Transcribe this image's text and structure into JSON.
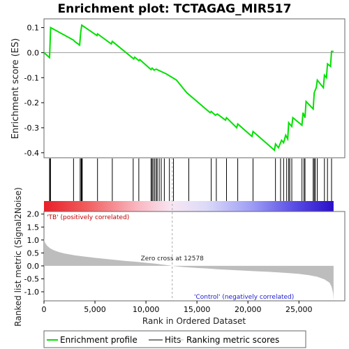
{
  "chart_data": {
    "type": "line",
    "title": "Enrichment plot: TCTAGAG_MIR517",
    "top_panel": {
      "ylabel": "Enrichment score (ES)",
      "ylim": [
        -0.42,
        0.135
      ],
      "yticks": [
        0.1,
        0.0,
        -0.1,
        -0.2,
        -0.3,
        -0.4
      ],
      "ytick_labels": [
        "0.1",
        "0.0",
        "-0.1",
        "-0.2",
        "-0.3",
        "-0.4"
      ],
      "line_color": "#00e000",
      "enrichment_profile": [
        [
          0,
          0.0
        ],
        [
          550,
          -0.02
        ],
        [
          600,
          0.04
        ],
        [
          650,
          0.1
        ],
        [
          2900,
          0.05
        ],
        [
          3000,
          0.045
        ],
        [
          3500,
          0.03
        ],
        [
          3600,
          0.08
        ],
        [
          3700,
          0.11
        ],
        [
          5200,
          0.068
        ],
        [
          5250,
          0.075
        ],
        [
          6600,
          0.035
        ],
        [
          6700,
          0.045
        ],
        [
          8800,
          -0.025
        ],
        [
          8900,
          -0.018
        ],
        [
          9300,
          -0.032
        ],
        [
          9400,
          -0.028
        ],
        [
          10500,
          -0.068
        ],
        [
          10600,
          -0.062
        ],
        [
          10800,
          -0.07
        ],
        [
          11000,
          -0.066
        ],
        [
          12000,
          -0.085
        ],
        [
          13000,
          -0.11
        ],
        [
          14000,
          -0.16
        ],
        [
          16300,
          -0.24
        ],
        [
          16400,
          -0.235
        ],
        [
          16800,
          -0.25
        ],
        [
          17000,
          -0.245
        ],
        [
          17800,
          -0.27
        ],
        [
          17900,
          -0.26
        ],
        [
          18900,
          -0.3
        ],
        [
          19000,
          -0.285
        ],
        [
          20400,
          -0.335
        ],
        [
          20500,
          -0.315
        ],
        [
          22600,
          -0.39
        ],
        [
          22700,
          -0.365
        ],
        [
          23000,
          -0.38
        ],
        [
          23300,
          -0.35
        ],
        [
          23500,
          -0.36
        ],
        [
          23700,
          -0.33
        ],
        [
          23900,
          -0.345
        ],
        [
          24000,
          -0.28
        ],
        [
          24300,
          -0.295
        ],
        [
          24400,
          -0.26
        ],
        [
          25300,
          -0.29
        ],
        [
          25400,
          -0.24
        ],
        [
          25600,
          -0.26
        ],
        [
          25700,
          -0.195
        ],
        [
          26400,
          -0.225
        ],
        [
          26500,
          -0.16
        ],
        [
          26700,
          -0.14
        ],
        [
          26800,
          -0.11
        ],
        [
          27400,
          -0.14
        ],
        [
          27500,
          -0.09
        ],
        [
          27700,
          -0.1
        ],
        [
          27800,
          -0.045
        ],
        [
          28100,
          -0.055
        ],
        [
          28200,
          0.005
        ],
        [
          28400,
          0.005
        ]
      ],
      "hit_positions": [
        550,
        620,
        640,
        2900,
        3550,
        3650,
        3700,
        3750,
        5250,
        6700,
        8750,
        9300,
        10500,
        10600,
        10700,
        10850,
        11000,
        11100,
        11300,
        11500,
        11800,
        12300,
        12700,
        14200,
        16400,
        16900,
        17900,
        19000,
        20500,
        22700,
        23200,
        23500,
        23800,
        24000,
        24100,
        24300,
        25300,
        25500,
        25600,
        26400,
        26500,
        26600,
        26800,
        27500,
        27800,
        28200
      ]
    },
    "colorbar": {
      "label_positive": "'TB' (positively correlated)",
      "label_negative": "'Control' (negatively correlated)"
    },
    "bottom_panel": {
      "ylabel": "Ranked list metric (Signal2Noise)",
      "xlabel": "Rank in Ordered Dataset",
      "ylim": [
        -1.35,
        2.1
      ],
      "yticks": [
        2.0,
        1.5,
        1.0,
        0.5,
        0.0,
        -0.5,
        -1.0
      ],
      "ytick_labels": [
        "2.0",
        "1.5",
        "1.0",
        "0.5",
        "0.0",
        "-0.5",
        "-1.0"
      ],
      "xlim": [
        0,
        29500
      ],
      "xticks": [
        0,
        5000,
        10000,
        15000,
        20000,
        25000
      ],
      "xtick_labels": [
        "0",
        "5,000",
        "10,000",
        "15,000",
        "20,000",
        "25,000"
      ],
      "zero_cross_rank": 12578,
      "zero_cross_label": "Zero cross at 12578",
      "n_genes": 28400,
      "metric_curve": [
        [
          0,
          1.05
        ],
        [
          100,
          0.9
        ],
        [
          300,
          0.78
        ],
        [
          600,
          0.68
        ],
        [
          1000,
          0.6
        ],
        [
          1500,
          0.53
        ],
        [
          2000,
          0.48
        ],
        [
          3000,
          0.41
        ],
        [
          4000,
          0.36
        ],
        [
          5000,
          0.31
        ],
        [
          6000,
          0.27
        ],
        [
          7000,
          0.23
        ],
        [
          8000,
          0.19
        ],
        [
          9000,
          0.16
        ],
        [
          10000,
          0.12
        ],
        [
          11000,
          0.08
        ],
        [
          12000,
          0.03
        ],
        [
          12578,
          0.0
        ],
        [
          13500,
          -0.04
        ],
        [
          15000,
          -0.08
        ],
        [
          16000,
          -0.1
        ],
        [
          17000,
          -0.13
        ],
        [
          18000,
          -0.15
        ],
        [
          19000,
          -0.17
        ],
        [
          20000,
          -0.19
        ],
        [
          21000,
          -0.21
        ],
        [
          22000,
          -0.23
        ],
        [
          23000,
          -0.25
        ],
        [
          24000,
          -0.28
        ],
        [
          25000,
          -0.31
        ],
        [
          26000,
          -0.36
        ],
        [
          26800,
          -0.42
        ],
        [
          27500,
          -0.52
        ],
        [
          28000,
          -0.65
        ],
        [
          28200,
          -0.8
        ],
        [
          28350,
          -1.05
        ],
        [
          28400,
          -1.3
        ]
      ]
    },
    "legend": {
      "items": [
        {
          "label": "Enrichment profile",
          "color": "#00e000"
        },
        {
          "label": "Hits",
          "color": "#000000"
        },
        {
          "label": "Ranking metric scores",
          "color": "#bbbbbb"
        }
      ]
    }
  }
}
